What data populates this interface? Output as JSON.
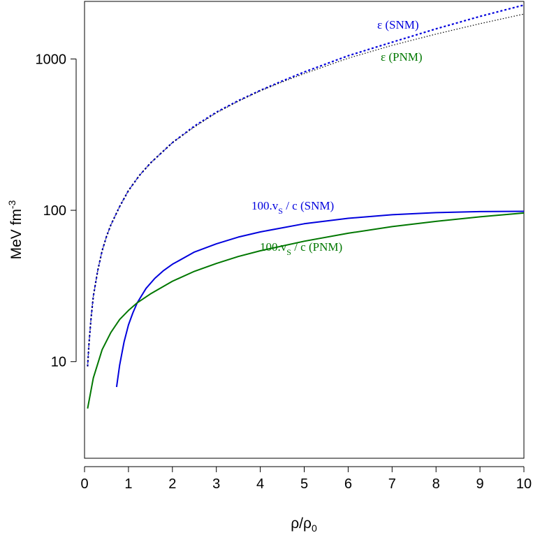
{
  "chart_data": {
    "type": "line",
    "xlabel_main": "ρ/ρ",
    "xlabel_sub": "0",
    "ylabel_main": "MeV fm",
    "ylabel_sup": "-3",
    "xlim": [
      0,
      10
    ],
    "ylim": [
      2.3,
      2400
    ],
    "ylog": true,
    "xticks": [
      0,
      1,
      2,
      3,
      4,
      5,
      6,
      7,
      8,
      9,
      10
    ],
    "xtick_labels": [
      "0",
      "1",
      "2",
      "3",
      "4",
      "5",
      "6",
      "7",
      "8",
      "9",
      "10"
    ],
    "yticks": [
      10,
      100,
      1000
    ],
    "ytick_labels": [
      "10",
      "100",
      "1000"
    ],
    "series": [
      {
        "name": "eps_snm",
        "color": "#0000dd",
        "style": "dotted",
        "x": [
          0.07,
          0.1,
          0.15,
          0.2,
          0.3,
          0.4,
          0.5,
          0.6,
          0.8,
          1.0,
          1.25,
          1.5,
          2,
          2.5,
          3,
          3.5,
          4,
          4.5,
          5,
          6,
          7,
          8,
          9,
          10
        ],
        "y": [
          9.3,
          13,
          19.5,
          27,
          40,
          54,
          67,
          80,
          106,
          135,
          170,
          205,
          280,
          360,
          445,
          530,
          620,
          715,
          820,
          1050,
          1290,
          1580,
          1910,
          2270
        ]
      },
      {
        "name": "eps_pnm",
        "color": "#000000",
        "style": "dotted",
        "x": [
          0.07,
          0.1,
          0.15,
          0.2,
          0.3,
          0.4,
          0.5,
          0.6,
          0.8,
          1.0,
          1.25,
          1.5,
          2,
          2.5,
          3,
          3.5,
          4,
          4.5,
          5,
          6,
          7,
          8,
          9,
          10
        ],
        "y": [
          9.3,
          13,
          19.5,
          27,
          40,
          54,
          67,
          80,
          106,
          135,
          170,
          205,
          280,
          355,
          440,
          525,
          615,
          705,
          800,
          1010,
          1230,
          1460,
          1710,
          1980
        ]
      },
      {
        "name": "cs_snm",
        "color": "#0000dd",
        "style": "solid",
        "x": [
          0.73,
          0.8,
          0.9,
          1.0,
          1.1,
          1.2,
          1.4,
          1.6,
          1.8,
          2.0,
          2.5,
          3,
          3.5,
          4,
          5,
          6,
          7,
          8,
          9,
          10
        ],
        "y": [
          6.8,
          9.5,
          13.5,
          17.5,
          21,
          24.5,
          30.5,
          35.5,
          40,
          44,
          53,
          60,
          66.5,
          72,
          81.5,
          88.5,
          93.5,
          96.5,
          98,
          98.5
        ]
      },
      {
        "name": "cs_pnm",
        "color": "#007700",
        "style": "solid",
        "x": [
          0.07,
          0.2,
          0.4,
          0.6,
          0.8,
          1.0,
          1.2,
          1.5,
          2,
          2.5,
          3,
          3.5,
          4,
          5,
          6,
          7,
          8,
          9,
          10
        ],
        "y": [
          4.9,
          7.8,
          12,
          15.6,
          19,
          21.8,
          24.5,
          28,
          34,
          39.5,
          44.5,
          49.5,
          54,
          62.5,
          70.5,
          78,
          84.5,
          90.5,
          96
        ]
      }
    ],
    "annotations": [
      {
        "name": "label-eps-snm",
        "color": "#0000dd",
        "main": "ε (SNM)",
        "sub": ""
      },
      {
        "name": "label-eps-pnm",
        "color": "#007700",
        "main": "ε (PNM)",
        "sub": ""
      },
      {
        "name": "label-cs-snm",
        "color": "#0000dd",
        "main": "100.v",
        "sub": "S",
        "rest": " / c (SNM)"
      },
      {
        "name": "label-cs-pnm",
        "color": "#007700",
        "main": "100.v",
        "sub": "S",
        "rest": " / c (PNM)"
      }
    ]
  }
}
